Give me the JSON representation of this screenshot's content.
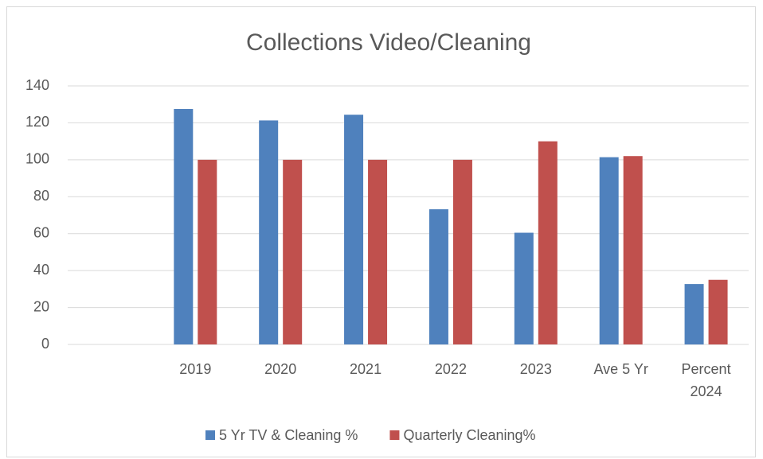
{
  "chart_data": {
    "type": "bar",
    "title": "Collections Video/Cleaning",
    "categories": [
      null,
      "2019",
      "2020",
      "2021",
      "2022",
      "2023",
      "Ave 5 Yr",
      "Percent 2024"
    ],
    "series": [
      {
        "name": "5 Yr TV & Cleaning %",
        "color": "#4f81bd",
        "values": [
          null,
          127.5,
          121.3,
          124.4,
          73.2,
          60.5,
          101.4,
          32.7
        ]
      },
      {
        "name": "Quarterly Cleaning%",
        "color": "#c0504d",
        "values": [
          null,
          100,
          100,
          100,
          100,
          110,
          102,
          35
        ]
      }
    ],
    "ylim": [
      0,
      140
    ],
    "yticks": [
      0,
      20,
      40,
      60,
      80,
      100,
      120,
      140
    ],
    "grid": true,
    "legend": "bottom"
  }
}
